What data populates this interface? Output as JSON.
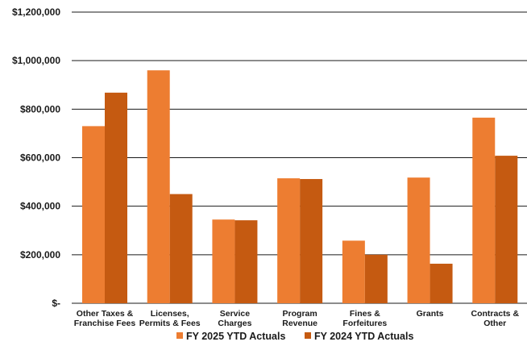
{
  "chart_data": {
    "type": "bar",
    "categories": [
      [
        "Other Taxes &",
        "Franchise Fees"
      ],
      [
        "Licenses,",
        "Permits & Fees"
      ],
      [
        "Service",
        "Charges"
      ],
      [
        "Program",
        "Revenue"
      ],
      [
        "Fines &",
        "Forfeitures"
      ],
      [
        "Grants"
      ],
      [
        "Contracts &",
        "Other"
      ]
    ],
    "series": [
      {
        "name": "FY 2025 YTD Actuals",
        "color": "#ed7d31",
        "values": [
          730000,
          960000,
          345000,
          515000,
          258000,
          518000,
          765000
        ]
      },
      {
        "name": "FY 2024 YTD Actuals",
        "color": "#c55a11",
        "values": [
          868000,
          450000,
          342000,
          512000,
          200000,
          163000,
          608000
        ]
      }
    ],
    "ylim": [
      0,
      1200000
    ],
    "yticks": [
      0,
      200000,
      400000,
      600000,
      800000,
      1000000,
      1200000
    ],
    "ytick_labels": [
      "$-",
      "$200,000",
      "$400,000",
      "$600,000",
      "$800,000",
      "$1,000,000",
      "$1,200,000"
    ],
    "grid": true,
    "legend_position": "bottom"
  }
}
